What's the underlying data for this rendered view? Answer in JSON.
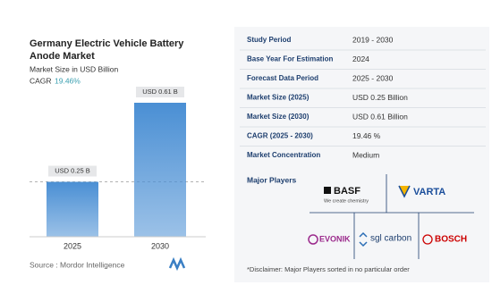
{
  "header": {
    "title_lines": [
      "Germany Electric Vehicle Battery",
      "Anode Market"
    ],
    "subtitle": "Market Size in USD Billion",
    "cagr_label": "CAGR",
    "cagr_value": "19.46%"
  },
  "chart_data": {
    "type": "bar",
    "categories": [
      "2025",
      "2030"
    ],
    "values": [
      0.25,
      0.61
    ],
    "value_labels": [
      "USD 0.25 B",
      "USD 0.61 B"
    ],
    "color": "#4a8fd4"
  },
  "table": {
    "rows": [
      [
        "Study Period",
        "2019 - 2030"
      ],
      [
        "Base Year For Estimation",
        "2024"
      ],
      [
        "Forecast Data Period",
        "2025 - 2030"
      ],
      [
        "Market Size (2025)",
        "USD 0.25 Billion"
      ],
      [
        "Market Size (2030)",
        "USD 0.61 Billion"
      ],
      [
        "CAGR (2025 - 2030)",
        "19.46 %"
      ],
      [
        "Market Concentration",
        "Medium"
      ]
    ]
  },
  "players": {
    "title": "Major Players",
    "basf": "BASF",
    "basf_tagline": "We create chemistry",
    "varta": "VARTA",
    "evonik": "EVONIK",
    "sgl": "sgl carbon",
    "bosch": "BOSCH"
  },
  "footer": {
    "source": "Source :  Mordor Intelligence",
    "disclaimer": "*Disclaimer: Major Players sorted in no particular order"
  }
}
